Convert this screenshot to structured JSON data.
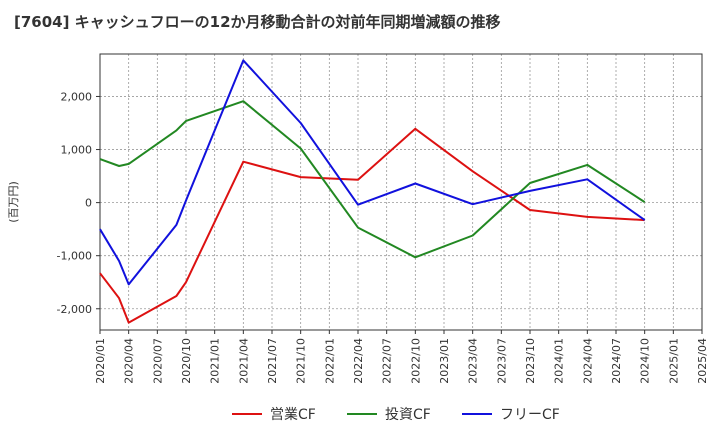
{
  "chart_data": {
    "type": "line",
    "title": "[7604]  キャッシュフローの12か月移動合計の対前年同期増減額の推移",
    "ylabel": "(百万円)",
    "xlabel": "",
    "ylim": [
      -2400,
      2800
    ],
    "yticks": [
      -2000,
      -1000,
      0,
      1000,
      2000
    ],
    "ytick_labels": [
      "-2,000",
      "-1,000",
      "0",
      "1,000",
      "2,000"
    ],
    "xlim": [
      "2020/01",
      "2025/04"
    ],
    "xtick_labels": [
      "2020/01",
      "2020/04",
      "2020/07",
      "2020/10",
      "2021/01",
      "2021/04",
      "2021/07",
      "2021/10",
      "2022/01",
      "2022/04",
      "2022/07",
      "2022/10",
      "2023/01",
      "2023/04",
      "2023/07",
      "2023/10",
      "2024/01",
      "2024/04",
      "2024/07",
      "2024/10",
      "2025/01",
      "2025/04"
    ],
    "grid": true,
    "legend_position": "bottom",
    "series": [
      {
        "name": "営業CF",
        "color": "#dd1111",
        "x": [
          "2020/01",
          "2020/03",
          "2020/04",
          "2020/09",
          "2020/10",
          "2021/04",
          "2021/10",
          "2022/04",
          "2022/10",
          "2023/04",
          "2023/10",
          "2024/04",
          "2024/10"
        ],
        "values": [
          -1330,
          -1800,
          -2260,
          -1760,
          -1500,
          770,
          480,
          430,
          1390,
          590,
          -140,
          -270,
          -330
        ]
      },
      {
        "name": "投資CF",
        "color": "#228822",
        "x": [
          "2020/01",
          "2020/03",
          "2020/04",
          "2020/09",
          "2020/10",
          "2021/04",
          "2021/10",
          "2022/04",
          "2022/10",
          "2023/04",
          "2023/10",
          "2024/04",
          "2024/10"
        ],
        "values": [
          820,
          690,
          730,
          1360,
          1540,
          1910,
          1020,
          -470,
          -1030,
          -620,
          370,
          710,
          10
        ]
      },
      {
        "name": "フリーCF",
        "color": "#1111dd",
        "x": [
          "2020/01",
          "2020/03",
          "2020/04",
          "2020/09",
          "2020/10",
          "2021/04",
          "2021/10",
          "2022/04",
          "2022/10",
          "2023/04",
          "2023/10",
          "2024/04",
          "2024/10"
        ],
        "values": [
          -500,
          -1100,
          -1540,
          -420,
          40,
          2680,
          1500,
          -40,
          360,
          -30,
          220,
          440,
          -330
        ]
      }
    ]
  }
}
